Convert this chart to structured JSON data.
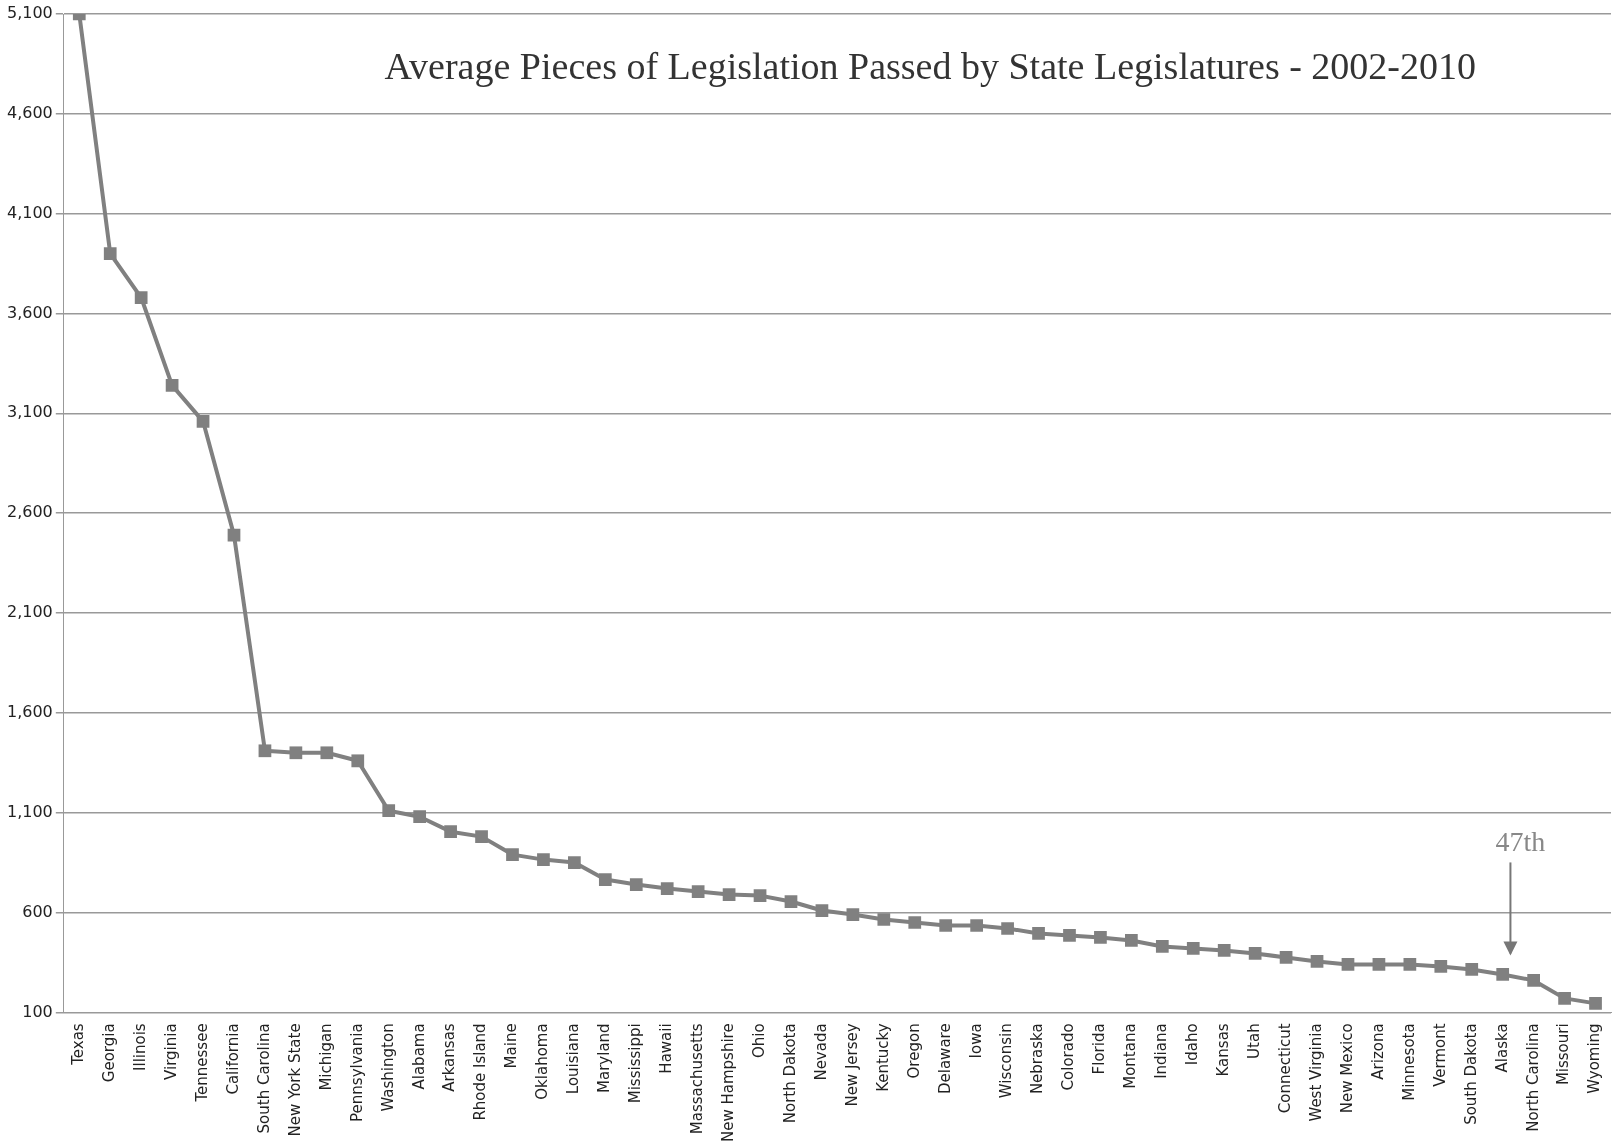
{
  "chart_data": {
    "type": "line",
    "title": "Average Pieces of Legislation Passed by State Legislatures - 2002-2010",
    "categories": [
      "Texas",
      "Georgia",
      "Illinois",
      "Virginia",
      "Tennessee",
      "California",
      "South Carolina",
      "New York State",
      "Michigan",
      "Pennsylvania",
      "Washington",
      "Alabama",
      "Arkansas",
      "Rhode Island",
      "Maine",
      "Oklahoma",
      "Louisiana",
      "Maryland",
      "Mississippi",
      "Hawaii",
      "Massachusetts",
      "New Hampshire",
      "Ohio",
      "North Dakota",
      "Nevada",
      "New Jersey",
      "Kentucky",
      "Oregon",
      "Delaware",
      "Iowa",
      "Wisconsin",
      "Nebraska",
      "Colorado",
      "Florida",
      "Montana",
      "Indiana",
      "Idaho",
      "Kansas",
      "Utah",
      "Connecticut",
      "West Virginia",
      "New Mexico",
      "Arizona",
      "Minnesota",
      "Vermont",
      "South Dakota",
      "Alaska",
      "North Carolina",
      "Missouri",
      "Wyoming"
    ],
    "series": [
      {
        "color": "#808080",
        "values": [
          5100,
          3900,
          3680,
          3240,
          3060,
          2490,
          1410,
          1400,
          1400,
          1360,
          1110,
          1080,
          1005,
          980,
          890,
          865,
          850,
          765,
          740,
          720,
          705,
          690,
          685,
          655,
          610,
          590,
          565,
          550,
          535,
          535,
          520,
          495,
          485,
          475,
          460,
          430,
          420,
          410,
          395,
          375,
          355,
          340,
          340,
          340,
          330,
          315,
          290,
          260,
          170,
          145
        ]
      }
    ],
    "ylim": [
      100,
      5100
    ],
    "yticks": [
      100,
      600,
      {
        "value": 1100,
        "label": "1,100"
      },
      {
        "value": 1600,
        "label": "1,600"
      },
      {
        "value": 2100,
        "label": "2,100"
      },
      {
        "value": 2600,
        "label": "2,600"
      },
      {
        "value": 3100,
        "label": "3,100"
      },
      {
        "value": 3600,
        "label": "3,600"
      },
      {
        "value": 4100,
        "label": "4,100"
      },
      {
        "value": 4600,
        "label": "4,600"
      },
      {
        "value": 5100,
        "label": "5,100"
      }
    ],
    "grid": "y",
    "legend": false,
    "marker": "square",
    "line_style": "solid",
    "annotations": [
      "47th"
    ]
  }
}
